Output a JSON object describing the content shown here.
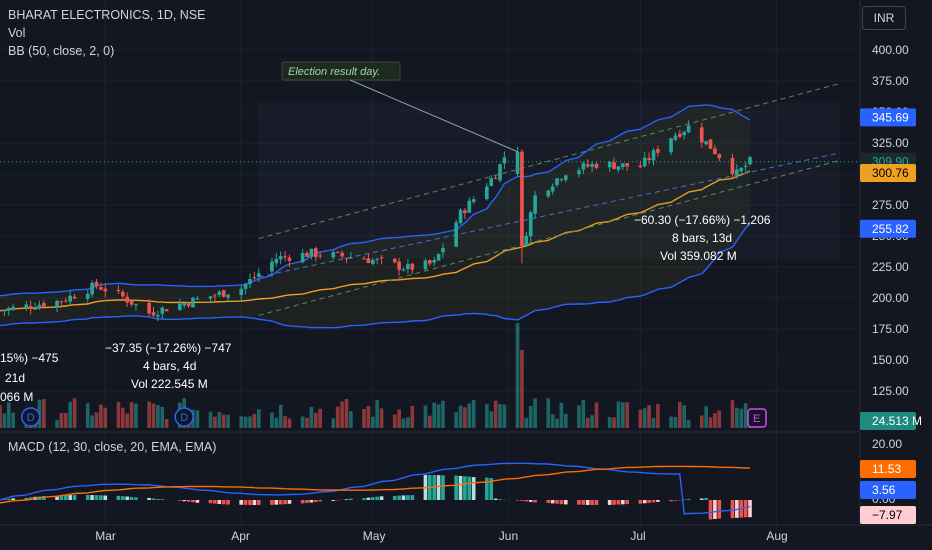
{
  "header": {
    "title": "BHARAT ELECTRONICS, 1D, NSE",
    "vol_label": "Vol",
    "bb_label": "BB (50, close, 2, 0)",
    "currency_button": "INR"
  },
  "macd_label": "MACD (12, 30, close, 20, EMA, EMA)",
  "colors": {
    "background": "#131722",
    "up": "#26a69a",
    "down": "#ef5350",
    "bb_band": "#2962ff",
    "bb_basis": "#f0a020",
    "macd_line": "#2962ff",
    "signal_line": "#ff6d00"
  },
  "price_axis": {
    "ticks": [
      "400.00",
      "375.00",
      "350.00",
      "325.00",
      "300.00",
      "275.00",
      "250.00",
      "225.00",
      "200.00",
      "175.00",
      "150.00",
      "125.00"
    ]
  },
  "price_badges": {
    "bb_upper": "345.69",
    "last_price": "309.90",
    "bb_basis": "300.76",
    "bb_lower": "255.82",
    "volume": "24.513 M"
  },
  "macd_axis": {
    "ticks": [
      "20.00",
      "0.00"
    ],
    "signal_value": "11.53",
    "macd_value": "3.56",
    "hist_value": "−7.97"
  },
  "time_axis": {
    "labels": [
      "Mar",
      "Apr",
      "May",
      "Jun",
      "Jul",
      "Aug"
    ]
  },
  "annotations": {
    "callout": "Election result day.",
    "measure_left": {
      "line1": "−37.35 (−17.26%) −747",
      "line2": "4 bars, 4d",
      "line3": "Vol 222.545 M"
    },
    "measure_right": {
      "line1": "−60.30 (−17.66%) −1,206",
      "line2": "8 bars, 13d",
      "line3": "Vol 359.082 M"
    },
    "measure_cut": {
      "line1": "15%) −475",
      "line2": "21d",
      "line3": "066 M"
    }
  },
  "events": {
    "dividend_marker": "D",
    "earnings_marker": "E"
  },
  "chart_data": {
    "type": "candlestick",
    "title": "BHARAT ELECTRONICS, 1D, NSE",
    "x_range": [
      "2024-02-06",
      "2024-07-26"
    ],
    "y_range": [
      100,
      410
    ],
    "price_path": [
      {
        "date": "2024-02-06",
        "close": 190
      },
      {
        "date": "2024-02-20",
        "close": 198
      },
      {
        "date": "2024-02-28",
        "close": 210
      },
      {
        "date": "2024-03-04",
        "close": 203
      },
      {
        "date": "2024-03-11",
        "close": 188
      },
      {
        "date": "2024-03-19",
        "close": 196
      },
      {
        "date": "2024-04-01",
        "close": 208
      },
      {
        "date": "2024-04-09",
        "close": 232
      },
      {
        "date": "2024-04-17",
        "close": 236
      },
      {
        "date": "2024-04-29",
        "close": 232
      },
      {
        "date": "2024-05-09",
        "close": 224
      },
      {
        "date": "2024-05-15",
        "close": 228
      },
      {
        "date": "2024-05-21",
        "close": 268
      },
      {
        "date": "2024-05-29",
        "close": 300
      },
      {
        "date": "2024-05-31",
        "close": 314
      },
      {
        "date": "2024-06-04",
        "close": 240
      },
      {
        "date": "2024-06-07",
        "close": 282
      },
      {
        "date": "2024-06-14",
        "close": 302
      },
      {
        "date": "2024-06-21",
        "close": 308
      },
      {
        "date": "2024-07-01",
        "close": 306
      },
      {
        "date": "2024-07-08",
        "close": 330
      },
      {
        "date": "2024-07-12",
        "close": 338
      },
      {
        "date": "2024-07-17",
        "close": 322
      },
      {
        "date": "2024-07-23",
        "close": 300
      },
      {
        "date": "2024-07-26",
        "close": 309.9
      }
    ],
    "bollinger": {
      "basis_last": 300.76,
      "upper_last": 345.69,
      "lower_last": 255.82
    },
    "macd_series": {
      "macd_last": 3.56,
      "signal_last": 11.53,
      "histogram_last": -7.97
    }
  }
}
